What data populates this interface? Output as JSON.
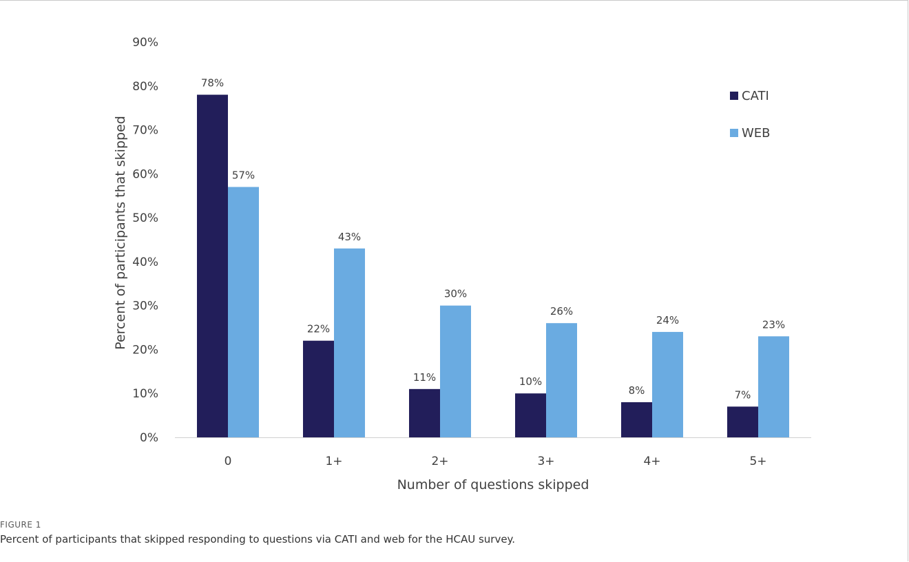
{
  "figure": {
    "label": "FIGURE 1",
    "caption": "Percent of participants that skipped responding to questions via CATI and web for the HCAU survey."
  },
  "colors": {
    "cati": "#221e5a",
    "web": "#6aabe1",
    "axis_line": "#d0d0d0",
    "text": "#404040"
  },
  "chart_data": {
    "type": "bar",
    "title": "",
    "xlabel": "Number of questions skipped",
    "ylabel": "Percent of participants that skipped",
    "categories": [
      "0",
      "1+",
      "2+",
      "3+",
      "4+",
      "5+"
    ],
    "series": [
      {
        "name": "CATI",
        "values": [
          78,
          22,
          11,
          10,
          8,
          7
        ],
        "labels": [
          "78%",
          "22%",
          "11%",
          "10%",
          "8%",
          "7%"
        ]
      },
      {
        "name": "WEB",
        "values": [
          57,
          43,
          30,
          26,
          24,
          23
        ],
        "labels": [
          "57%",
          "43%",
          "30%",
          "26%",
          "24%",
          "23%"
        ]
      }
    ],
    "ylim": [
      0,
      90
    ],
    "yticks": [
      "0%",
      "10%",
      "20%",
      "30%",
      "40%",
      "50%",
      "60%",
      "70%",
      "80%",
      "90%"
    ],
    "grid": false,
    "legend_position": "top-right"
  }
}
